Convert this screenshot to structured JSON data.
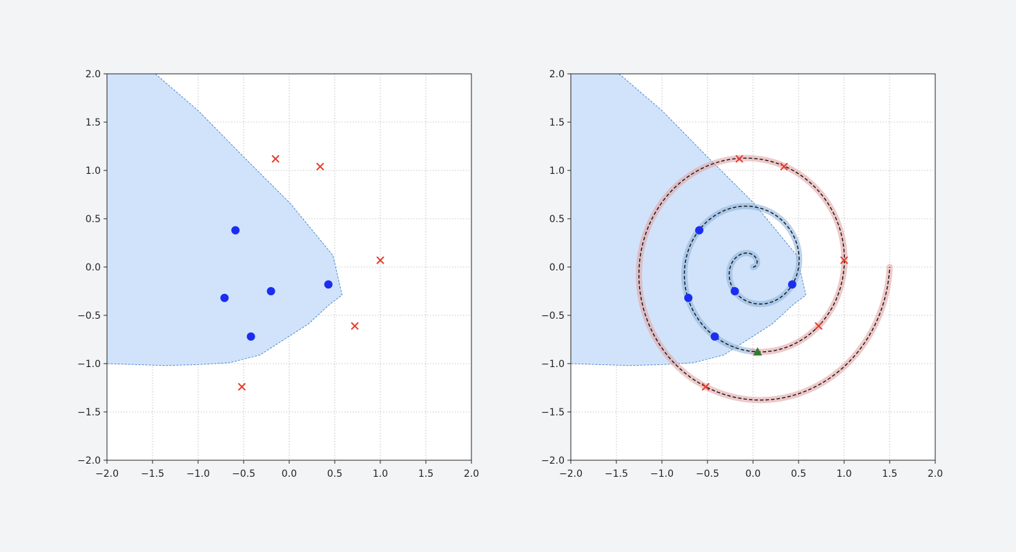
{
  "chart_data": [
    {
      "type": "scatter",
      "xlim": [
        -2,
        2
      ],
      "ylim": [
        -2,
        2
      ],
      "grid": true,
      "x_ticks": [
        "−2.0",
        "−1.5",
        "−1.0",
        "−0.5",
        "0.0",
        "0.5",
        "1.0",
        "1.5",
        "2.0"
      ],
      "y_ticks": [
        "−2.0",
        "−1.5",
        "−1.0",
        "−0.5",
        "0.0",
        "0.5",
        "1.0",
        "1.5",
        "2.0"
      ],
      "region": {
        "fill": "#cfe2fa",
        "edge": "#4a86d0",
        "polygon": [
          [
            -2,
            2
          ],
          [
            -1.47,
            2
          ],
          [
            -1.0,
            1.62
          ],
          [
            -0.5,
            1.14
          ],
          [
            0.01,
            0.66
          ],
          [
            0.48,
            0.12
          ],
          [
            0.58,
            -0.29
          ],
          [
            0.44,
            -0.39
          ],
          [
            0.21,
            -0.59
          ],
          [
            -0.32,
            -0.91
          ],
          [
            -0.65,
            -0.99
          ],
          [
            -1.0,
            -1.01
          ],
          [
            -1.36,
            -1.02
          ],
          [
            -2,
            -1.0
          ]
        ]
      },
      "series": [
        {
          "marker": "circle",
          "color": "#1a2ef2",
          "points": [
            [
              -0.59,
              0.38
            ],
            [
              -0.71,
              -0.32
            ],
            [
              -0.2,
              -0.25
            ],
            [
              0.43,
              -0.18
            ],
            [
              -0.42,
              -0.72
            ]
          ]
        },
        {
          "marker": "x",
          "color": "#e8392a",
          "points": [
            [
              -0.15,
              1.12
            ],
            [
              0.34,
              1.04
            ],
            [
              1.0,
              0.07
            ],
            [
              0.72,
              -0.61
            ],
            [
              -0.52,
              -1.24
            ]
          ]
        }
      ]
    },
    {
      "type": "scatter",
      "xlim": [
        -2,
        2
      ],
      "ylim": [
        -2,
        2
      ],
      "grid": true,
      "x_ticks": [
        "−2.0",
        "−1.5",
        "−1.0",
        "−0.5",
        "0.0",
        "0.5",
        "1.0",
        "1.5",
        "2.0"
      ],
      "y_ticks": [
        "−2.0",
        "−1.5",
        "−1.0",
        "−0.5",
        "0.0",
        "0.5",
        "1.0",
        "1.5",
        "2.0"
      ],
      "region": {
        "fill": "#cfe2fa",
        "edge": "#4a86d0",
        "polygon": [
          [
            -2,
            2
          ],
          [
            -1.47,
            2
          ],
          [
            -1.0,
            1.62
          ],
          [
            -0.5,
            1.14
          ],
          [
            0.01,
            0.66
          ],
          [
            0.48,
            0.12
          ],
          [
            0.58,
            -0.29
          ],
          [
            0.44,
            -0.39
          ],
          [
            0.21,
            -0.59
          ],
          [
            -0.32,
            -0.91
          ],
          [
            -0.65,
            -0.99
          ],
          [
            -1.0,
            -1.01
          ],
          [
            -1.36,
            -1.02
          ],
          [
            -2,
            -1.0
          ]
        ]
      },
      "spiral": {
        "center": [
          0,
          0
        ],
        "turns": 3,
        "end_radius": 1.5,
        "inner_arm_turns": 1.75,
        "inner_color": "#8fb4dc",
        "outer_color": "#e2a5a5",
        "line_color": "#111111"
      },
      "series": [
        {
          "marker": "circle",
          "color": "#1a2ef2",
          "points": [
            [
              -0.59,
              0.38
            ],
            [
              -0.71,
              -0.32
            ],
            [
              -0.2,
              -0.25
            ],
            [
              0.43,
              -0.18
            ],
            [
              -0.42,
              -0.72
            ]
          ]
        },
        {
          "marker": "x",
          "color": "#e8392a",
          "points": [
            [
              -0.15,
              1.12
            ],
            [
              0.34,
              1.04
            ],
            [
              1.0,
              0.07
            ],
            [
              0.72,
              -0.61
            ],
            [
              -0.52,
              -1.24
            ]
          ]
        },
        {
          "marker": "triangle",
          "color": "#2e7d32",
          "points": [
            [
              0.05,
              -0.88
            ]
          ]
        }
      ]
    }
  ]
}
